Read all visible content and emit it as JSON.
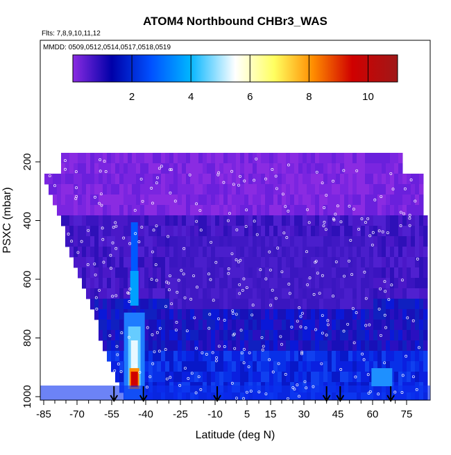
{
  "chart_data": {
    "type": "heatmap",
    "title": "ATOM4 Northbound CHBr3_WAS",
    "subtitle_flights": "Flts: 7,8,9,10,11,12",
    "subtitle_dates": "MMDD: 0509,0512,0514,0517,0518,0519",
    "xlabel": "Latitude (deg N)",
    "ylabel": "PSXC (mbar)",
    "x_ticks": [
      "-85",
      "-70",
      "-55",
      "-40",
      "-25",
      "-10",
      "5",
      "15",
      "30",
      "45",
      "60",
      "75"
    ],
    "y_ticks": [
      "200",
      "400",
      "600",
      "800",
      "1000"
    ],
    "y_reversed": true,
    "colorbar": {
      "range": [
        0,
        11
      ],
      "tick_labels": [
        "2",
        "4",
        "6",
        "8",
        "10"
      ],
      "colors": [
        "#8a2be2",
        "#0000a8",
        "#0050ff",
        "#00b4ff",
        "#ffffff",
        "#ffff60",
        "#ff8c00",
        "#d00000",
        "#a01818"
      ]
    },
    "arrow_latitudes": [
      -54,
      -41,
      -9,
      40,
      46,
      68
    ],
    "hotspot": {
      "latitude": -45,
      "pressure": 940,
      "value": 10.5
    },
    "missing_region": "white wedge below the curtain south of about -47 deg N and above 200 mbar"
  }
}
